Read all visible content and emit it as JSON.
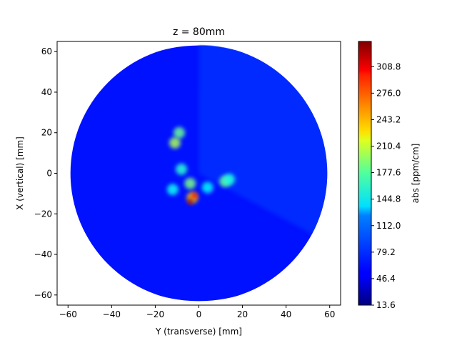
{
  "chart_data": {
    "type": "heatmap",
    "title": "z = 80mm",
    "xlabel": "Y (transverse) [mm]",
    "ylabel": "X (vertical) [mm]",
    "xlim": [
      -65,
      65
    ],
    "ylim": [
      -65,
      65
    ],
    "x_ticks": [
      -60,
      -40,
      -20,
      0,
      20,
      40,
      60
    ],
    "y_ticks": [
      -60,
      -40,
      -20,
      0,
      20,
      40,
      60
    ],
    "x_tick_labels": [
      "−60",
      "−40",
      "−20",
      "0",
      "20",
      "40",
      "60"
    ],
    "y_tick_labels": [
      "−60",
      "−40",
      "−20",
      "0",
      "20",
      "40",
      "60"
    ],
    "grid": false,
    "colormap": "jet",
    "colorbar": {
      "label": "abs [ppm/cm]",
      "min": 13.6,
      "max": 340,
      "ticks": [
        13.6,
        46.4,
        79.2,
        112.0,
        144.8,
        177.6,
        210.4,
        243.2,
        276.0,
        308.8
      ],
      "tick_labels": [
        "13.6",
        "46.4",
        "79.2",
        "112.0",
        "144.8",
        "177.6",
        "210.4",
        "243.2",
        "276.0",
        "308.8"
      ]
    },
    "field": {
      "shape": "disk",
      "center": [
        0,
        0
      ],
      "radius": 63,
      "background_value": 60,
      "upper_right_value": 75,
      "features": [
        {
          "x": -11,
          "y": 15,
          "value": 190
        },
        {
          "x": -9,
          "y": 20,
          "value": 170
        },
        {
          "x": -8,
          "y": 2,
          "value": 150
        },
        {
          "x": -4,
          "y": -5,
          "value": 175
        },
        {
          "x": -3,
          "y": -12,
          "value": 240
        },
        {
          "x": -4,
          "y": -14,
          "value": 330
        },
        {
          "x": -2,
          "y": -11,
          "value": 300
        },
        {
          "x": -12,
          "y": -8,
          "value": 140
        },
        {
          "x": 4,
          "y": -7,
          "value": 135
        },
        {
          "x": 12,
          "y": -4,
          "value": 170
        },
        {
          "x": 14,
          "y": -3,
          "value": 145
        }
      ]
    }
  }
}
